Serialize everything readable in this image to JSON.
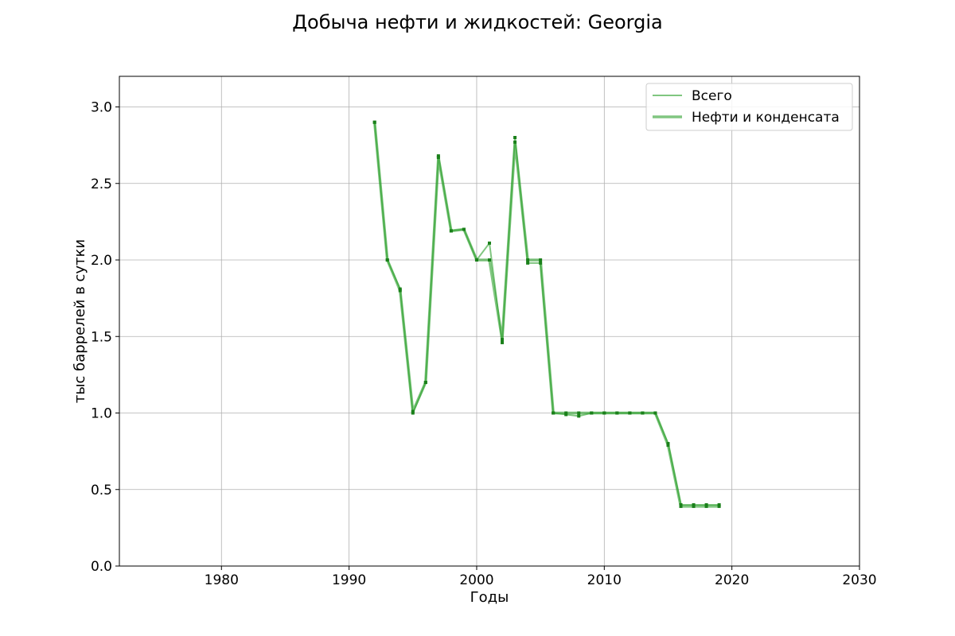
{
  "chart_data": {
    "type": "line",
    "title": "Добыча нефти и жидкостей: Georgia",
    "xlabel": "Годы",
    "ylabel": "тыс баррелей в сутки",
    "xlim": [
      1972,
      2030
    ],
    "ylim": [
      0,
      3.2
    ],
    "xticks": [
      1980,
      1990,
      2000,
      2010,
      2020,
      2030
    ],
    "yticks": [
      0.0,
      0.5,
      1.0,
      1.5,
      2.0,
      2.5,
      3.0
    ],
    "xtick_labels": [
      "1980",
      "1990",
      "2000",
      "2010",
      "2020",
      "2030"
    ],
    "ytick_labels": [
      "0.0",
      "0.5",
      "1.0",
      "1.5",
      "2.0",
      "2.5",
      "3.0"
    ],
    "grid": true,
    "legend_position": "top-right",
    "x": [
      1992,
      1993,
      1994,
      1995,
      1996,
      1997,
      1998,
      1999,
      2000,
      2001,
      2002,
      2003,
      2004,
      2005,
      2006,
      2007,
      2008,
      2009,
      2010,
      2011,
      2012,
      2013,
      2014,
      2015,
      2016,
      2017,
      2018,
      2019
    ],
    "series": [
      {
        "name": "Всего",
        "color": "#2ca02c",
        "values": [
          2.9,
          2.0,
          1.81,
          1.0,
          1.2,
          2.68,
          2.19,
          2.2,
          2.0,
          2.11,
          1.46,
          2.8,
          1.98,
          1.98,
          1.0,
          0.99,
          0.98,
          1.0,
          1.0,
          1.0,
          1.0,
          1.0,
          1.0,
          0.8,
          0.4,
          0.4,
          0.4,
          0.4
        ]
      },
      {
        "name": "Нефти и конденсата",
        "color": "#2ca02c",
        "values": [
          2.9,
          2.0,
          1.8,
          1.01,
          1.2,
          2.67,
          2.19,
          2.2,
          2.0,
          2.0,
          1.48,
          2.77,
          2.0,
          2.0,
          1.0,
          1.0,
          1.0,
          1.0,
          1.0,
          1.0,
          1.0,
          1.0,
          1.0,
          0.79,
          0.39,
          0.39,
          0.39,
          0.39
        ]
      }
    ]
  }
}
